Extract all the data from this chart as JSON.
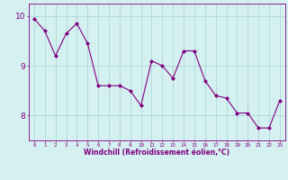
{
  "x": [
    0,
    1,
    2,
    3,
    4,
    5,
    6,
    7,
    8,
    9,
    10,
    11,
    12,
    13,
    14,
    15,
    16,
    17,
    18,
    19,
    20,
    21,
    22,
    23
  ],
  "y": [
    9.95,
    9.7,
    9.2,
    9.65,
    9.85,
    9.45,
    8.6,
    8.6,
    8.6,
    8.5,
    8.2,
    9.1,
    9.0,
    8.75,
    9.3,
    9.3,
    8.7,
    8.4,
    8.35,
    8.05,
    8.05,
    7.75,
    7.75,
    8.3
  ],
  "line_color": "#800080",
  "marker": "D",
  "marker_size": 2.0,
  "bg_color": "#d4f0f0",
  "grid_color": "#b0d8d8",
  "xlabel": "Windchill (Refroidissement éolien,°C)",
  "xlabel_color": "#800080",
  "tick_color": "#800080",
  "axis_color": "#800080",
  "ylim": [
    7.5,
    10.25
  ],
  "xlim": [
    -0.5,
    23.5
  ],
  "yticks": [
    8,
    9,
    10
  ],
  "xticks": [
    0,
    1,
    2,
    3,
    4,
    5,
    6,
    7,
    8,
    9,
    10,
    11,
    12,
    13,
    14,
    15,
    16,
    17,
    18,
    19,
    20,
    21,
    22,
    23
  ],
  "title": ""
}
